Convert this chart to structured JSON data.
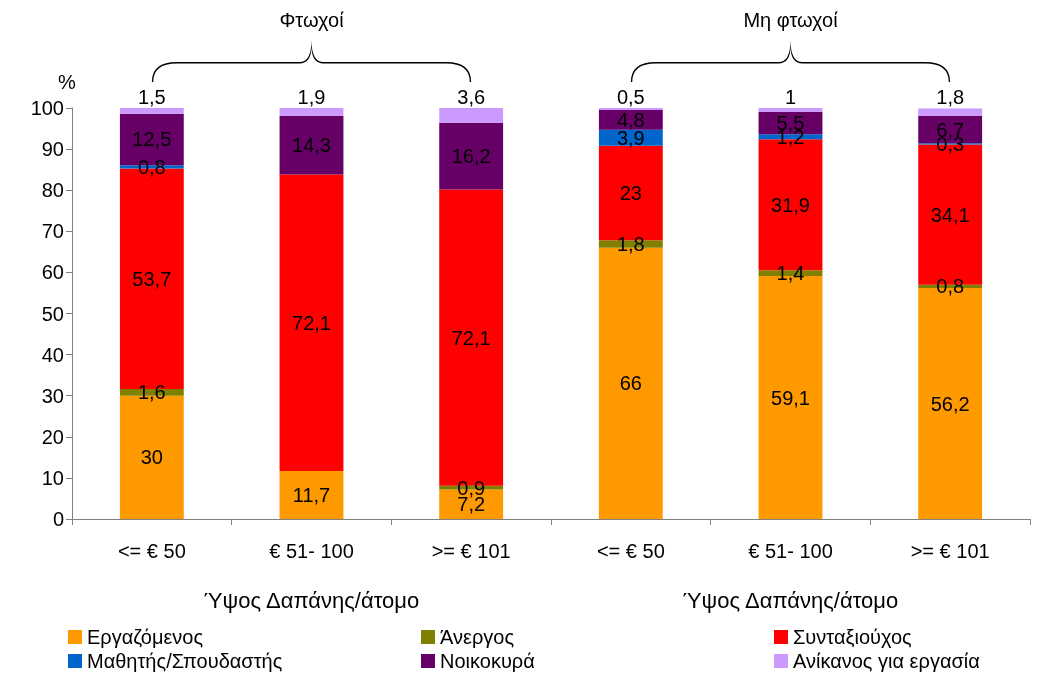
{
  "chart_data": {
    "type": "bar",
    "stacked": true,
    "ylabel": "%",
    "xlabel": "Ύψος Δαπάνης/άτομο",
    "annotations": [
      "Φτωχοί",
      "Μη φτωχοί"
    ],
    "categories": [
      "<= € 50",
      "€ 51- 100",
      ">= € 101",
      "<= € 50",
      "€ 51- 100",
      ">= € 101"
    ],
    "ylim": [
      0,
      100
    ],
    "yticks": [
      0,
      10,
      20,
      30,
      40,
      50,
      60,
      70,
      80,
      90,
      100
    ],
    "grid": false,
    "legend": "bottom",
    "series": [
      {
        "name": "Εργαζόμενος",
        "color": "#ff9900",
        "values": [
          30,
          11.7,
          7.2,
          66,
          59.1,
          56.2
        ],
        "value_labels": [
          "30",
          "11,7",
          "7,2",
          "66",
          "59,1",
          "56,2"
        ]
      },
      {
        "name": "Άνεργος",
        "color": "#808000",
        "values": [
          1.6,
          null,
          0.9,
          1.8,
          1.4,
          0.8
        ],
        "value_labels": [
          "1,6",
          null,
          "0,9",
          "1,8",
          "1,4",
          "0,8"
        ]
      },
      {
        "name": "Συνταξιούχος",
        "color": "#ff0000",
        "values": [
          53.7,
          72.1,
          72.1,
          23,
          31.9,
          34.1
        ],
        "value_labels": [
          "53,7",
          "72,1",
          "72,1",
          "23",
          "31,9",
          "34,1"
        ]
      },
      {
        "name": "Μαθητής/Σπουδαστής",
        "color": "#0066cc",
        "values": [
          0.8,
          null,
          null,
          3.9,
          1.2,
          0.3
        ],
        "value_labels": [
          "0,8",
          null,
          null,
          "3,9",
          "1,2",
          "0,3"
        ]
      },
      {
        "name": "Νοικοκυρά",
        "color": "#660066",
        "values": [
          12.5,
          14.3,
          16.2,
          4.8,
          5.5,
          6.7
        ],
        "value_labels": [
          "12,5",
          "14,3",
          "16,2",
          "4,8",
          "5,5",
          "6,7"
        ]
      },
      {
        "name": "Ανίκανος για εργασία",
        "color": "#cc99ff",
        "values": [
          1.5,
          1.9,
          3.6,
          0.5,
          1,
          1.8
        ],
        "value_labels": [
          "1,5",
          "1,9",
          "3,6",
          "0,5",
          "1",
          "1,8"
        ]
      }
    ]
  }
}
